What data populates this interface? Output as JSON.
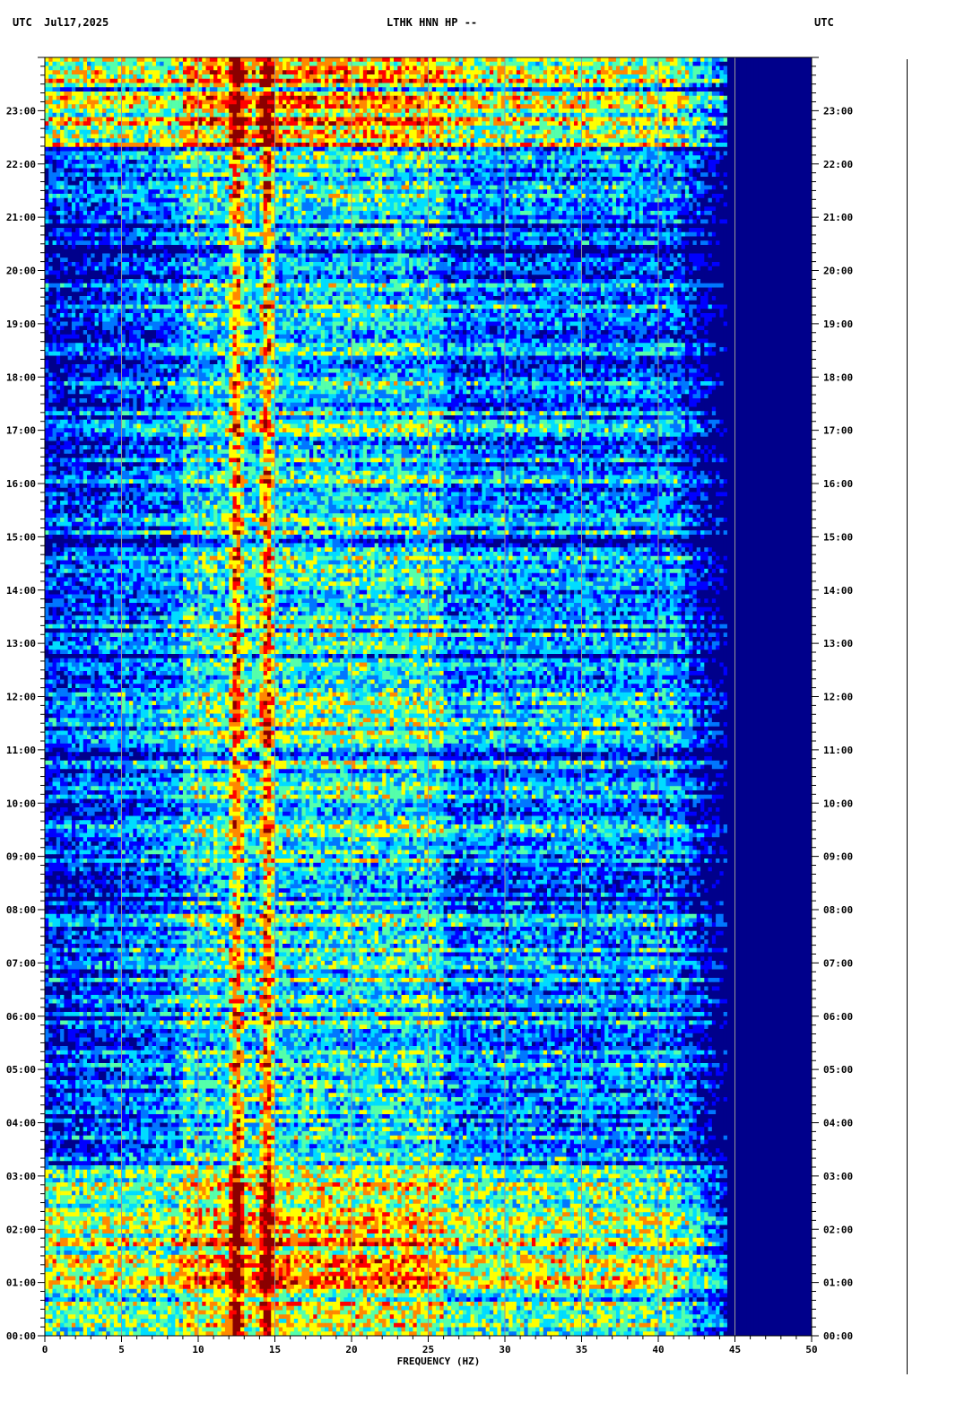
{
  "header": {
    "left_tz": "UTC",
    "date": "Jul17,2025",
    "station": "LTHK HNN HP --",
    "right_tz": "UTC"
  },
  "chart_data": {
    "type": "heatmap",
    "title": "LTHK HNN HP --",
    "xlabel": "FREQUENCY (HZ)",
    "ylabel": "UTC",
    "xlim": [
      0,
      50
    ],
    "ylim_hours": [
      0,
      24
    ],
    "x_ticks": [
      "0",
      "5",
      "10",
      "15",
      "20",
      "25",
      "30",
      "35",
      "40",
      "45",
      "50"
    ],
    "y_ticks": [
      "00:00",
      "01:00",
      "02:00",
      "03:00",
      "04:00",
      "05:00",
      "06:00",
      "07:00",
      "08:00",
      "09:00",
      "10:00",
      "11:00",
      "12:00",
      "13:00",
      "14:00",
      "15:00",
      "16:00",
      "17:00",
      "18:00",
      "19:00",
      "20:00",
      "21:00",
      "22:00",
      "23:00"
    ],
    "grid": true,
    "colormap": [
      "#00008b",
      "#0000ff",
      "#0077ff",
      "#00ddff",
      "#55ffaa",
      "#ffff00",
      "#ff8800",
      "#ff0000",
      "#8b0000"
    ],
    "features": {
      "energy_cutoff_hz": 43,
      "persistent_lines_hz": [
        12.5,
        14.5
      ],
      "high_energy_periods_utc": [
        [
          "00:00",
          "03:05"
        ],
        [
          "22:20",
          "24:00"
        ]
      ]
    }
  },
  "colors": {
    "background": "#ffffff",
    "grid": "#999999",
    "axis": "#000000"
  }
}
